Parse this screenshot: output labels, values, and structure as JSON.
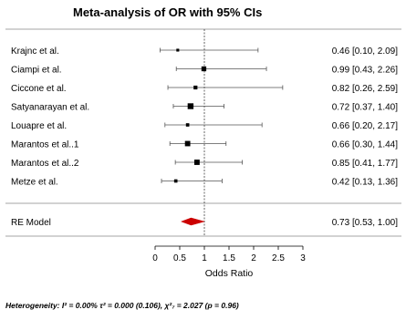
{
  "chart_data": {
    "type": "forest",
    "title": "Meta-analysis of OR with 95% CIs",
    "xlabel": "Odds Ratio",
    "xlim": [
      0,
      3
    ],
    "xticks": [
      "0",
      "0.5",
      "1",
      "1.5",
      "2",
      "2.5",
      "3"
    ],
    "xtick_values": [
      0,
      0.5,
      1,
      1.5,
      2,
      2.5,
      3
    ],
    "reference_line": 1,
    "studies": [
      {
        "label": "Krajnc et al.",
        "or": 0.46,
        "lo": 0.1,
        "hi": 2.09,
        "weight": 1,
        "ci_text": "0.46 [0.10, 2.09]"
      },
      {
        "label": "Ciampi et al.",
        "or": 0.99,
        "lo": 0.43,
        "hi": 2.26,
        "weight": 3,
        "ci_text": "0.99 [0.43, 2.26]"
      },
      {
        "label": "Ciccone et al.",
        "or": 0.82,
        "lo": 0.26,
        "hi": 2.59,
        "weight": 2,
        "ci_text": "0.82 [0.26, 2.59]"
      },
      {
        "label": "Satyanarayan et al.",
        "or": 0.72,
        "lo": 0.37,
        "hi": 1.4,
        "weight": 4,
        "ci_text": "0.72 [0.37, 1.40]"
      },
      {
        "label": "Louapre et al.",
        "or": 0.66,
        "lo": 0.2,
        "hi": 2.17,
        "weight": 1.5,
        "ci_text": "0.66 [0.20, 2.17]"
      },
      {
        "label": "Marantos et al..1",
        "or": 0.66,
        "lo": 0.3,
        "hi": 1.44,
        "weight": 3.5,
        "ci_text": "0.66 [0.30, 1.44]"
      },
      {
        "label": "Marantos et al..2",
        "or": 0.85,
        "lo": 0.41,
        "hi": 1.77,
        "weight": 3.5,
        "ci_text": "0.85 [0.41, 1.77]"
      },
      {
        "label": "Metze et al.",
        "or": 0.42,
        "lo": 0.13,
        "hi": 1.36,
        "weight": 1.5,
        "ci_text": "0.42 [0.13, 1.36]"
      }
    ],
    "summary": {
      "label": "RE Model",
      "or": 0.73,
      "lo": 0.53,
      "hi": 1.0,
      "ci_text": "0.73 [0.53, 1.00]",
      "color": "#cc0000"
    },
    "heterogeneity": "Heterogeneity: I² = 0.00%  τ² = 0.000 (0.106), χ²₇ = 2.027 (p = 0.96)"
  }
}
